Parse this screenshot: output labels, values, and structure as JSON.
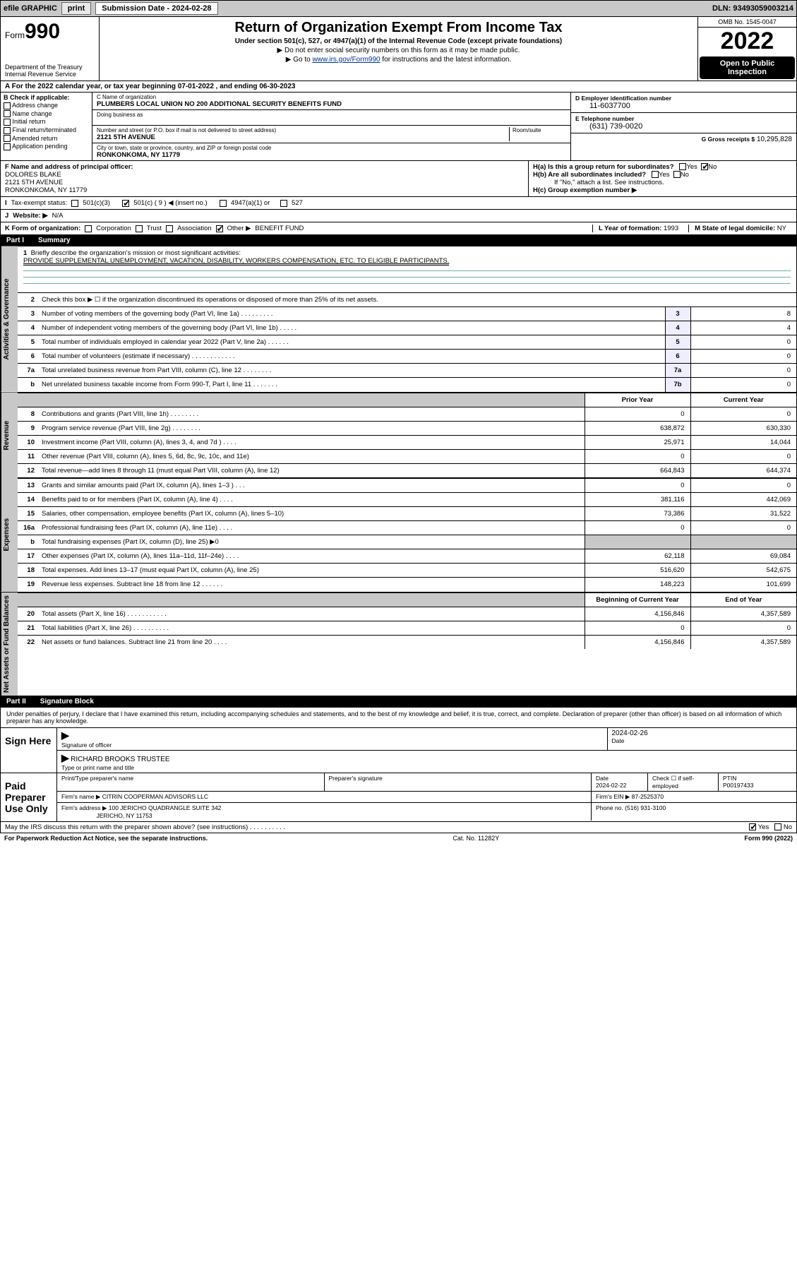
{
  "topbar": {
    "efile_label": "efile GRAPHIC",
    "print_btn": "print",
    "submission_label": "Submission Date - 2024-02-28",
    "dln": "DLN: 93493059003214"
  },
  "header": {
    "form_label": "Form",
    "form_number": "990",
    "dept": "Department of the Treasury",
    "irs": "Internal Revenue Service",
    "title": "Return of Organization Exempt From Income Tax",
    "sub1": "Under section 501(c), 527, or 4947(a)(1) of the Internal Revenue Code (except private foundations)",
    "sub2": "▶ Do not enter social security numbers on this form as it may be made public.",
    "sub3_pre": "▶ Go to ",
    "sub3_link": "www.irs.gov/Form990",
    "sub3_post": " for instructions and the latest information.",
    "omb": "OMB No. 1545-0047",
    "year": "2022",
    "open1": "Open to Public",
    "open2": "Inspection"
  },
  "row_a": "A For the 2022 calendar year, or tax year beginning 07-01-2022     , and ending 06-30-2023",
  "col_b": {
    "hdr": "B Check if applicable:",
    "opts": [
      "Address change",
      "Name change",
      "Initial return",
      "Final return/terminated",
      "Amended return",
      "Application pending"
    ]
  },
  "col_c": {
    "name_lbl": "C Name of organization",
    "name": "PLUMBERS LOCAL UNION NO 200 ADDITIONAL SECURITY BENEFITS FUND",
    "dba_lbl": "Doing business as",
    "addr_lbl": "Number and street (or P.O. box if mail is not delivered to street address)",
    "room_lbl": "Room/suite",
    "addr": "2121 5TH AVENUE",
    "city_lbl": "City or town, state or province, country, and ZIP or foreign postal code",
    "city": "RONKONKOMA, NY  11779"
  },
  "col_de": {
    "d_lbl": "D Employer identification number",
    "d_val": "11-6037700",
    "e_lbl": "E Telephone number",
    "e_val": "(631) 739-0020",
    "g_lbl": "G Gross receipts $",
    "g_val": "10,295,828"
  },
  "row_f": {
    "lbl": "F Name and address of principal officer:",
    "name": "DOLORES BLAKE",
    "addr1": "2121 5TH AVENUE",
    "addr2": "RONKONKOMA, NY  11779"
  },
  "row_h": {
    "a_lbl": "H(a)  Is this a group return for subordinates?",
    "b_lbl": "H(b)  Are all subordinates included?",
    "b_note": "If \"No,\" attach a list. See instructions.",
    "c_lbl": "H(c)  Group exemption number ▶",
    "yes": "Yes",
    "no": "No"
  },
  "row_i": {
    "lbl": "Tax-exempt status:",
    "o1": "501(c)(3)",
    "o2": "501(c) ( 9 ) ◀ (insert no.)",
    "o3": "4947(a)(1) or",
    "o4": "527"
  },
  "row_j": {
    "lbl": "Website: ▶",
    "val": "N/A"
  },
  "row_k": {
    "lbl": "K Form of organization:",
    "opts": [
      "Corporation",
      "Trust",
      "Association",
      "Other ▶"
    ],
    "other_val": "BENEFIT FUND",
    "year_lbl": "L Year of formation:",
    "year_val": "1993",
    "state_lbl": "M State of legal domicile:",
    "state_val": "NY"
  },
  "part1": {
    "hdr": "Part I",
    "title": "Summary"
  },
  "sections": {
    "s1": "Activities & Governance",
    "s2": "Revenue",
    "s3": "Expenses",
    "s4": "Net Assets or Fund Balances"
  },
  "mission": {
    "q": "Briefly describe the organization's mission or most significant activities:",
    "a": "PROVIDE SUPPLEMENTAL UNEMPLOYMENT, VACATION, DISABILITY, WORKERS COMPENSATION, ETC. TO ELIGIBLE PARTICIPANTS."
  },
  "lines_gov": [
    {
      "n": "2",
      "d": "Check this box ▶ ☐  if the organization discontinued its operations or disposed of more than 25% of its net assets.",
      "box": "",
      "v": ""
    },
    {
      "n": "3",
      "d": "Number of voting members of the governing body (Part VI, line 1a)   .    .    .    .    .    .    .    .    .",
      "box": "3",
      "v": "8"
    },
    {
      "n": "4",
      "d": "Number of independent voting members of the governing body (Part VI, line 1b)   .    .    .    .    .",
      "box": "4",
      "v": "4"
    },
    {
      "n": "5",
      "d": "Total number of individuals employed in calendar year 2022 (Part V, line 2a)   .    .    .    .    .    .",
      "box": "5",
      "v": "0"
    },
    {
      "n": "6",
      "d": "Total number of volunteers (estimate if necessary)   .    .    .    .    .    .    .    .    .    .    .    .",
      "box": "6",
      "v": "0"
    },
    {
      "n": "7a",
      "d": "Total unrelated business revenue from Part VIII, column (C), line 12   .    .    .    .    .    .    .    .",
      "box": "7a",
      "v": "0"
    },
    {
      "n": "b",
      "d": "Net unrelated business taxable income from Form 990-T, Part I, line 11   .    .    .    .    .    .    .",
      "box": "7b",
      "v": "0"
    }
  ],
  "colhdr": {
    "prior": "Prior Year",
    "current": "Current Year",
    "boc": "Beginning of Current Year",
    "eoy": "End of Year"
  },
  "lines_rev": [
    {
      "n": "8",
      "d": "Contributions and grants (Part VIII, line 1h)   .    .    .    .    .    .    .    .",
      "p": "0",
      "c": "0"
    },
    {
      "n": "9",
      "d": "Program service revenue (Part VIII, line 2g)   .    .    .    .    .    .    .    .",
      "p": "638,872",
      "c": "630,330"
    },
    {
      "n": "10",
      "d": "Investment income (Part VIII, column (A), lines 3, 4, and 7d )   .    .    .    .",
      "p": "25,971",
      "c": "14,044"
    },
    {
      "n": "11",
      "d": "Other revenue (Part VIII, column (A), lines 5, 6d, 8c, 9c, 10c, and 11e)",
      "p": "0",
      "c": "0"
    },
    {
      "n": "12",
      "d": "Total revenue—add lines 8 through 11 (must equal Part VIII, column (A), line 12)",
      "p": "664,843",
      "c": "644,374"
    }
  ],
  "lines_exp": [
    {
      "n": "13",
      "d": "Grants and similar amounts paid (Part IX, column (A), lines 1–3 )   .    .    .",
      "p": "0",
      "c": "0"
    },
    {
      "n": "14",
      "d": "Benefits paid to or for members (Part IX, column (A), line 4)   .    .    .    .",
      "p": "381,116",
      "c": "442,069"
    },
    {
      "n": "15",
      "d": "Salaries, other compensation, employee benefits (Part IX, column (A), lines 5–10)",
      "p": "73,386",
      "c": "31,522"
    },
    {
      "n": "16a",
      "d": "Professional fundraising fees (Part IX, column (A), line 11e)   .    .    .    .",
      "p": "0",
      "c": "0"
    },
    {
      "n": "b",
      "d": "Total fundraising expenses (Part IX, column (D), line 25) ▶0",
      "p": "",
      "c": "",
      "shade": true
    },
    {
      "n": "17",
      "d": "Other expenses (Part IX, column (A), lines 11a–11d, 11f–24e)   .    .    .    .",
      "p": "62,118",
      "c": "69,084"
    },
    {
      "n": "18",
      "d": "Total expenses. Add lines 13–17 (must equal Part IX, column (A), line 25)",
      "p": "516,620",
      "c": "542,675"
    },
    {
      "n": "19",
      "d": "Revenue less expenses. Subtract line 18 from line 12   .    .    .    .    .    .",
      "p": "148,223",
      "c": "101,699"
    }
  ],
  "lines_net": [
    {
      "n": "20",
      "d": "Total assets (Part X, line 16)   .    .    .    .    .    .    .    .    .    .    .",
      "p": "4,156,846",
      "c": "4,357,589"
    },
    {
      "n": "21",
      "d": "Total liabilities (Part X, line 26)   .    .    .    .    .    .    .    .    .    .",
      "p": "0",
      "c": "0"
    },
    {
      "n": "22",
      "d": "Net assets or fund balances. Subtract line 21 from line 20   .    .    .    .",
      "p": "4,156,846",
      "c": "4,357,589"
    }
  ],
  "part2": {
    "hdr": "Part II",
    "title": "Signature Block"
  },
  "sig_intro": "Under penalties of perjury, I declare that I have examined this return, including accompanying schedules and statements, and to the best of my knowledge and belief, it is true, correct, and complete. Declaration of preparer (other than officer) is based on all information of which preparer has any knowledge.",
  "sign": {
    "lbl": "Sign Here",
    "sig_lbl": "Signature of officer",
    "date_lbl": "Date",
    "date_val": "2024-02-26",
    "name": "RICHARD BROOKS TRUSTEE",
    "type_lbl": "Type or print name and title"
  },
  "prep": {
    "lbl": "Paid Preparer Use Only",
    "name_lbl": "Print/Type preparer's name",
    "sig_lbl": "Preparer's signature",
    "date_lbl": "Date",
    "date_val": "2024-02-22",
    "check_lbl": "Check ☐ if self-employed",
    "ptin_lbl": "PTIN",
    "ptin_val": "P00197433",
    "firm_name_lbl": "Firm's name    ▶",
    "firm_name": "CITRIN COOPERMAN ADVISORS LLC",
    "firm_ein_lbl": "Firm's EIN ▶",
    "firm_ein": "87-2525370",
    "firm_addr_lbl": "Firm's address ▶",
    "firm_addr1": "100 JERICHO QUADRANGLE SUITE 342",
    "firm_addr2": "JERICHO, NY  11753",
    "phone_lbl": "Phone no.",
    "phone": "(516) 931-3100"
  },
  "discuss": {
    "q": "May the IRS discuss this return with the preparer shown above? (see instructions)   .    .    .    .    .    .    .    .    .    .",
    "yes": "Yes",
    "no": "No"
  },
  "footer": {
    "l": "For Paperwork Reduction Act Notice, see the separate instructions.",
    "m": "Cat. No. 11282Y",
    "r": "Form 990 (2022)"
  }
}
